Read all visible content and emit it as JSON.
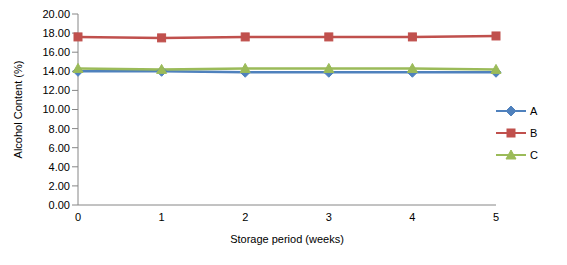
{
  "chart_data": {
    "type": "line",
    "x_label": "Storage period (weeks)",
    "y_label": "Alcohol Content (%)",
    "categories": [
      "0",
      "1",
      "2",
      "3",
      "4",
      "5"
    ],
    "series": [
      {
        "name": "A",
        "color": "#4F81BD",
        "marker": "diamond",
        "values": [
          14.0,
          14.0,
          13.9,
          13.9,
          13.9,
          13.9
        ]
      },
      {
        "name": "B",
        "color": "#C0504D",
        "marker": "square",
        "values": [
          17.6,
          17.5,
          17.6,
          17.6,
          17.6,
          17.7
        ]
      },
      {
        "name": "C",
        "color": "#9BBB59",
        "marker": "triangle",
        "values": [
          14.3,
          14.2,
          14.3,
          14.3,
          14.3,
          14.2
        ]
      }
    ],
    "ylim": [
      0,
      20
    ],
    "yticks": [
      {
        "value": 0,
        "label": "0.00"
      },
      {
        "value": 2,
        "label": "2.00"
      },
      {
        "value": 4,
        "label": "4.00"
      },
      {
        "value": 6,
        "label": "6.00"
      },
      {
        "value": 8,
        "label": "8.00"
      },
      {
        "value": 10,
        "label": "10.00"
      },
      {
        "value": 12,
        "label": "12.00"
      },
      {
        "value": 14,
        "label": "14.00"
      },
      {
        "value": 16,
        "label": "16.00"
      },
      {
        "value": 18,
        "label": "18.00"
      },
      {
        "value": 20,
        "label": "20.00"
      }
    ],
    "grid": false,
    "legend": "right"
  }
}
